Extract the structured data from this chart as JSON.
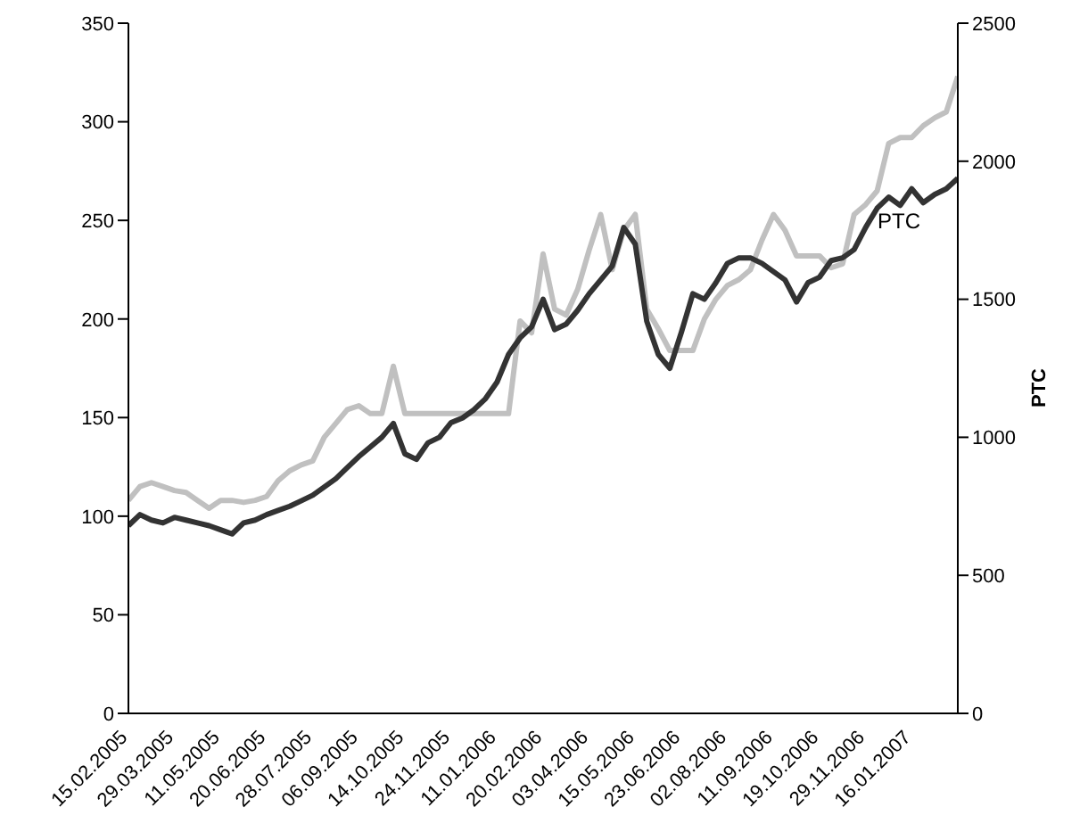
{
  "chart_data": {
    "type": "line",
    "y2label": "PTC",
    "categories": [
      "15.02.2005",
      null,
      null,
      null,
      "29.03.2005",
      null,
      null,
      null,
      "11.05.2005",
      null,
      null,
      null,
      "20.06.2005",
      null,
      null,
      null,
      "28.07.2005",
      null,
      null,
      null,
      "06.09.2005",
      null,
      null,
      null,
      "14.10.2005",
      null,
      null,
      null,
      "24.11.2005",
      null,
      null,
      null,
      "11.01.2006",
      null,
      null,
      null,
      "20.02.2006",
      null,
      null,
      null,
      "03.04.2006",
      null,
      null,
      null,
      "15.05.2006",
      null,
      null,
      null,
      "23.06.2006",
      null,
      null,
      null,
      "02.08.2006",
      null,
      null,
      null,
      "11.09.2006",
      null,
      null,
      null,
      "19.10.2006",
      null,
      null,
      null,
      "29.11.2006",
      null,
      null,
      null,
      "16.01.2007",
      null,
      null,
      null,
      null
    ],
    "series": [
      {
        "color": "#c0c0c0",
        "values": [
          108,
          115,
          117,
          115,
          113,
          112,
          108,
          104,
          108,
          108,
          107,
          108,
          110,
          118,
          123,
          126,
          128,
          140,
          147,
          154,
          156,
          152,
          152,
          176,
          152,
          152,
          152,
          152,
          152,
          152,
          152,
          152,
          152,
          152,
          199,
          193,
          233,
          205,
          202,
          215,
          235,
          253,
          225,
          245,
          253,
          205,
          195,
          184,
          184,
          184,
          200,
          210,
          217,
          220,
          225,
          240,
          253,
          245,
          232,
          232,
          232,
          226,
          228,
          253,
          258,
          265,
          289,
          292,
          292,
          298,
          302,
          305,
          323
        ]
      },
      {
        "name": "PTC",
        "color": "#333333",
        "axis": "y2",
        "values": [
          680,
          720,
          700,
          690,
          710,
          700,
          690,
          680,
          665,
          650,
          690,
          700,
          720,
          735,
          750,
          770,
          790,
          820,
          850,
          890,
          930,
          965,
          1000,
          1050,
          940,
          920,
          980,
          1000,
          1053,
          1070,
          1100,
          1140,
          1200,
          1300,
          1360,
          1400,
          1500,
          1390,
          1410,
          1460,
          1520,
          1570,
          1620,
          1760,
          1700,
          1420,
          1300,
          1250,
          1380,
          1520,
          1500,
          1560,
          1630,
          1650,
          1650,
          1630,
          1600,
          1570,
          1490,
          1560,
          1580,
          1640,
          1650,
          1680,
          1760,
          1830,
          1870,
          1840,
          1900,
          1850,
          1880,
          1900,
          1938
        ]
      }
    ],
    "ylim": [
      0,
      350
    ],
    "yticks": [
      0,
      50,
      100,
      150,
      200,
      250,
      300,
      350
    ],
    "y2lim": [
      0,
      2500
    ],
    "y2ticks": [
      0,
      500,
      1000,
      1500,
      2000,
      2500
    ],
    "grid": false,
    "legend": false,
    "marker": "none",
    "line_style": "solid"
  }
}
